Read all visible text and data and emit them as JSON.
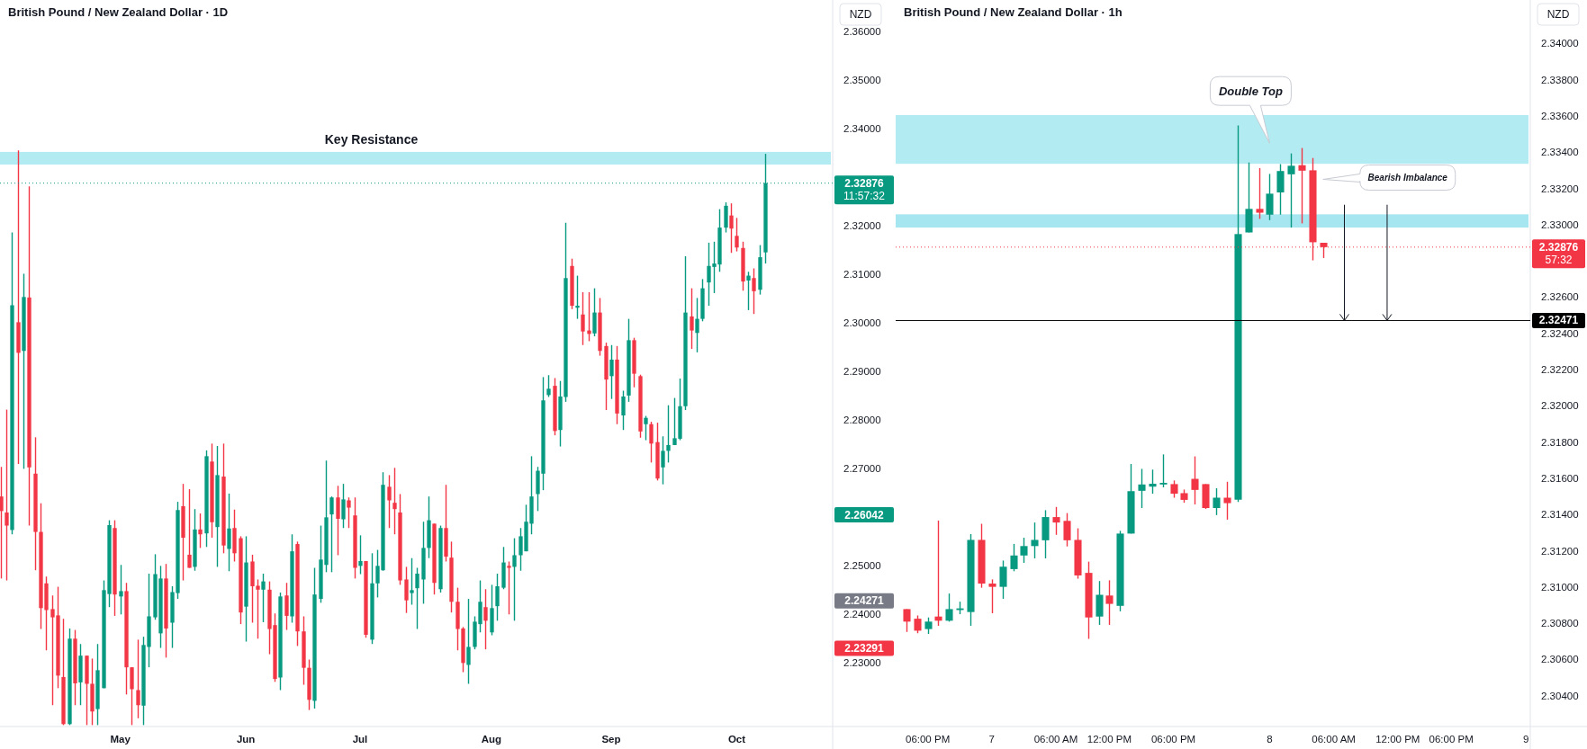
{
  "chart_data": [
    {
      "type": "candlestick",
      "title": "British Pound / New Zealand Dollar · 1D",
      "ylabel": "NZD",
      "categories": [
        null,
        null,
        null,
        null,
        null,
        null,
        null,
        null,
        null,
        null,
        null,
        null,
        null,
        null,
        null,
        null,
        null,
        null,
        null,
        null,
        null,
        "May",
        null,
        null,
        null,
        null,
        null,
        null,
        null,
        null,
        null,
        null,
        null,
        null,
        null,
        null,
        null,
        null,
        null,
        null,
        null,
        null,
        null,
        "Jun",
        null,
        null,
        null,
        null,
        null,
        null,
        null,
        null,
        null,
        null,
        null,
        null,
        null,
        null,
        null,
        null,
        null,
        null,
        null,
        "Jul",
        null,
        null,
        null,
        null,
        null,
        null,
        null,
        null,
        null,
        null,
        null,
        null,
        null,
        null,
        null,
        null,
        null,
        null,
        null,
        null,
        null,
        null,
        "Aug",
        null,
        null,
        null,
        null,
        null,
        null,
        null,
        null,
        null,
        null,
        null,
        null,
        null,
        null,
        null,
        null,
        null,
        null,
        null,
        null,
        "Sep",
        null,
        null,
        null,
        null,
        null,
        null,
        null,
        null,
        null,
        null,
        null,
        null,
        null,
        null,
        null,
        null,
        null,
        null,
        null,
        null,
        null,
        "Oct",
        null,
        null,
        null,
        null,
        null,
        null,
        null,
        null,
        null,
        null,
        null,
        null,
        null,
        null,
        null,
        null
      ],
      "ohlc": [
        [
          2.2642,
          2.2703,
          2.2473,
          2.2612
        ],
        [
          2.2609,
          2.2821,
          2.2469,
          2.2582
        ],
        [
          2.2573,
          2.3186,
          2.2564,
          2.3036
        ],
        [
          2.3001,
          2.3355,
          2.2709,
          2.2938
        ],
        [
          2.2942,
          2.3101,
          2.2699,
          2.3053
        ],
        [
          2.3052,
          2.3281,
          2.2582,
          2.2702
        ],
        [
          2.2689,
          2.2764,
          2.249,
          2.2569
        ],
        [
          2.2569,
          2.2628,
          2.2369,
          2.2412
        ],
        [
          2.2463,
          2.2477,
          2.2325,
          2.2408
        ],
        [
          2.241,
          2.2438,
          2.2212,
          2.2393
        ],
        [
          2.2397,
          2.2456,
          2.2247,
          2.2273
        ],
        [
          2.227,
          2.239,
          2.2171,
          2.2173
        ],
        [
          2.2173,
          2.237,
          2.2171,
          2.2349
        ],
        [
          2.2349,
          2.2367,
          2.2212,
          2.2257
        ],
        [
          2.2259,
          2.2338,
          2.2212,
          2.2314
        ],
        [
          2.2314,
          2.2314,
          2.2171,
          2.2256
        ],
        [
          2.2256,
          2.2308,
          2.2171,
          2.2199
        ],
        [
          2.2204,
          2.2338,
          2.2171,
          2.2284
        ],
        [
          2.2247,
          2.2469,
          2.2247,
          2.2449
        ],
        [
          2.2441,
          2.2593,
          2.2414,
          2.2583
        ],
        [
          2.2577,
          2.2593,
          2.2396,
          2.244
        ],
        [
          2.2436,
          2.2501,
          2.2399,
          2.2447
        ],
        [
          2.2447,
          2.2464,
          2.2234,
          2.229
        ],
        [
          2.229,
          2.229,
          2.2171,
          2.2245
        ],
        [
          2.2243,
          2.2347,
          2.2185,
          2.2212
        ],
        [
          2.2211,
          2.2353,
          2.2171,
          2.2336
        ],
        [
          2.2332,
          2.2483,
          2.229,
          2.2395
        ],
        [
          2.2393,
          2.2523,
          2.2388,
          2.2482
        ],
        [
          2.236,
          2.2499,
          2.233,
          2.2473
        ],
        [
          2.2473,
          2.2503,
          2.231,
          2.237
        ],
        [
          2.2382,
          2.2457,
          2.233,
          2.2445
        ],
        [
          2.2443,
          2.2631,
          2.2431,
          2.2614
        ],
        [
          2.2622,
          2.2668,
          2.2469,
          2.2557
        ],
        [
          2.2522,
          2.2657,
          2.2495,
          2.2495
        ],
        [
          2.2497,
          2.2616,
          2.2489,
          2.2574
        ],
        [
          2.2574,
          2.2607,
          2.2536,
          2.2564
        ],
        [
          2.2566,
          2.2737,
          2.2538,
          2.2725
        ],
        [
          2.2714,
          2.2751,
          2.2557,
          2.2589
        ],
        [
          2.2579,
          2.2746,
          2.2497,
          2.2686
        ],
        [
          2.2683,
          2.2751,
          2.2525,
          2.2541
        ],
        [
          2.2534,
          2.2648,
          2.2488,
          2.2576
        ],
        [
          2.2577,
          2.2615,
          2.2508,
          2.2525
        ],
        [
          2.2556,
          2.256,
          2.2379,
          2.2403
        ],
        [
          2.2415,
          2.256,
          2.2343,
          2.2506
        ],
        [
          2.2508,
          2.2522,
          2.2382,
          2.2457
        ],
        [
          2.2458,
          2.2471,
          2.2349,
          2.245
        ],
        [
          2.245,
          2.2483,
          2.2383,
          2.2467
        ],
        [
          2.245,
          2.2467,
          2.2317,
          2.2369
        ],
        [
          2.2377,
          2.2401,
          2.226,
          2.2266
        ],
        [
          2.2269,
          2.2444,
          2.2243,
          2.2436
        ],
        [
          2.2438,
          2.2464,
          2.2367,
          2.2396
        ],
        [
          2.2395,
          2.2564,
          2.2382,
          2.2529
        ],
        [
          2.2544,
          2.2549,
          2.2334,
          2.2364
        ],
        [
          2.2364,
          2.2395,
          2.2254,
          2.2289
        ],
        [
          2.2289,
          2.2306,
          2.2202,
          2.2223
        ],
        [
          2.2221,
          2.2495,
          2.2205,
          2.244
        ],
        [
          2.2431,
          2.2582,
          2.2423,
          2.2512
        ],
        [
          2.2501,
          2.2716,
          2.2486,
          2.2599
        ],
        [
          2.2605,
          2.2642,
          2.2486,
          2.264
        ],
        [
          2.264,
          2.2664,
          2.2521,
          2.2596
        ],
        [
          2.2595,
          2.2668,
          2.2577,
          2.2636
        ],
        [
          2.2634,
          2.264,
          2.2577,
          2.2619
        ],
        [
          2.2603,
          2.264,
          2.2473,
          2.2495
        ],
        [
          2.2499,
          2.2562,
          2.2482,
          2.2509
        ],
        [
          2.2509,
          2.2509,
          2.2351,
          2.2357
        ],
        [
          2.2347,
          2.2525,
          2.2338,
          2.2463
        ],
        [
          2.2463,
          2.2532,
          2.2434,
          2.2499
        ],
        [
          2.249,
          2.2692,
          2.2489,
          2.2666
        ],
        [
          2.2662,
          2.2686,
          2.2577,
          2.2634
        ],
        [
          2.2629,
          2.2701,
          2.2564,
          2.2616
        ],
        [
          2.2609,
          2.2647,
          2.246,
          2.2469
        ],
        [
          2.2471,
          2.2497,
          2.2402,
          2.2428
        ],
        [
          2.2443,
          2.2515,
          2.2419,
          2.2449
        ],
        [
          2.2453,
          2.2495,
          2.2369,
          2.2483
        ],
        [
          2.2471,
          2.259,
          2.2421,
          2.2536
        ],
        [
          2.2536,
          2.2642,
          2.2515,
          2.2593
        ],
        [
          2.2586,
          2.2586,
          2.244,
          2.2464
        ],
        [
          2.2451,
          2.2582,
          2.2444,
          2.2577
        ],
        [
          2.2577,
          2.2666,
          2.2508,
          2.2518
        ],
        [
          2.2516,
          2.2549,
          2.2403,
          2.2425
        ],
        [
          2.2425,
          2.2454,
          2.2325,
          2.2369
        ],
        [
          2.237,
          2.2373,
          2.228,
          2.2299
        ],
        [
          2.2295,
          2.2431,
          2.2256,
          2.2332
        ],
        [
          2.2332,
          2.2395,
          2.2327,
          2.2384
        ],
        [
          2.2379,
          2.2469,
          2.2362,
          2.2425
        ],
        [
          2.2414,
          2.2451,
          2.2327,
          2.2386
        ],
        [
          2.2362,
          2.246,
          2.2356,
          2.2412
        ],
        [
          2.2416,
          2.2483,
          2.2386,
          2.2457
        ],
        [
          2.2454,
          2.2538,
          2.2451,
          2.2506
        ],
        [
          2.2499,
          2.2508,
          2.2399,
          2.2495
        ],
        [
          2.2497,
          2.2556,
          2.2386,
          2.2521
        ],
        [
          2.2521,
          2.2577,
          2.2489,
          2.256
        ],
        [
          2.2529,
          2.2625,
          2.2529,
          2.259
        ],
        [
          2.2586,
          2.2725,
          2.2564,
          2.2642
        ],
        [
          2.2647,
          2.2703,
          2.2612,
          2.2695
        ],
        [
          2.2689,
          2.2888,
          2.2655,
          2.284
        ],
        [
          2.2851,
          2.2892,
          2.2847,
          2.2864
        ],
        [
          2.287,
          2.2886,
          2.2768,
          2.2777
        ],
        [
          2.2779,
          2.288,
          2.2745,
          2.2848
        ],
        [
          2.2847,
          2.3206,
          2.2837,
          2.3092
        ],
        [
          2.3117,
          2.3132,
          2.3028,
          2.3035
        ],
        [
          2.3031,
          2.3097,
          2.3008,
          2.3035
        ],
        [
          2.3017,
          2.3063,
          2.2954,
          2.2982
        ],
        [
          2.2984,
          2.3063,
          2.2962,
          2.2977
        ],
        [
          2.2978,
          2.3071,
          2.2972,
          2.3021
        ],
        [
          2.3021,
          2.3051,
          2.2932,
          2.2942
        ],
        [
          2.2952,
          2.2959,
          2.282,
          2.2883
        ],
        [
          2.289,
          2.2954,
          2.2843,
          2.2924
        ],
        [
          2.2924,
          2.2952,
          2.2791,
          2.2813
        ],
        [
          2.2809,
          2.286,
          2.2779,
          2.2848
        ],
        [
          2.285,
          2.3008,
          2.2837,
          2.2964
        ],
        [
          2.2964,
          2.2969,
          2.2867,
          2.2895
        ],
        [
          2.289,
          2.2893,
          2.2763,
          2.2776
        ],
        [
          2.2791,
          2.2808,
          2.2758,
          2.2804
        ],
        [
          2.2791,
          2.2796,
          2.2712,
          2.2751
        ],
        [
          2.2754,
          2.2794,
          2.2675,
          2.2679
        ],
        [
          2.2702,
          2.2766,
          2.2667,
          2.2736
        ],
        [
          2.2736,
          2.283,
          2.2712,
          2.2748
        ],
        [
          2.2748,
          2.2845,
          2.2748,
          2.2762
        ],
        [
          2.2761,
          2.2885,
          2.2758,
          2.2828
        ],
        [
          2.2828,
          2.3137,
          2.282,
          2.3021
        ],
        [
          2.3013,
          2.3071,
          2.2946,
          2.2984
        ],
        [
          2.2979,
          2.3051,
          2.2939,
          2.3008
        ],
        [
          2.3008,
          2.309,
          2.3003,
          2.3071
        ],
        [
          2.3083,
          2.3165,
          2.3035,
          2.3117
        ],
        [
          2.3115,
          2.3167,
          2.3061,
          2.3122
        ],
        [
          2.312,
          2.3234,
          2.3105,
          2.3196
        ],
        [
          2.3196,
          2.3248,
          2.3186,
          2.3241
        ],
        [
          2.3221,
          2.3246,
          2.3144,
          2.3194
        ],
        [
          2.3179,
          2.3216,
          2.3147,
          2.3155
        ],
        [
          2.3154,
          2.3167,
          2.3066,
          2.3085
        ],
        [
          2.3087,
          2.3105,
          2.3026,
          2.3097
        ],
        [
          2.3092,
          2.3112,
          2.3018,
          2.3065
        ],
        [
          2.3068,
          2.316,
          2.3058,
          2.3135
        ],
        [
          2.3145,
          2.3348,
          2.3122,
          2.32876
        ],
        null,
        null,
        null,
        null,
        null,
        null,
        null,
        null,
        null,
        null,
        null
      ],
      "ylim": [
        2.2168,
        2.3665
      ],
      "yticks": [
        {
          "value": 2.23,
          "label": "2.23000"
        },
        {
          "value": 2.24,
          "label": "2.24000"
        },
        {
          "value": 2.25,
          "label": "2.25000"
        },
        {
          "value": 2.27,
          "label": "2.27000"
        },
        {
          "value": 2.28,
          "label": "2.28000"
        },
        {
          "value": 2.29,
          "label": "2.29000"
        },
        {
          "value": 2.3,
          "label": "2.30000"
        },
        {
          "value": 2.31,
          "label": "2.31000"
        },
        {
          "value": 2.32,
          "label": "2.32000"
        },
        {
          "value": 2.34,
          "label": "2.34000"
        },
        {
          "value": 2.35,
          "label": "2.35000"
        },
        {
          "value": 2.36,
          "label": "2.36000"
        }
      ],
      "bands": [
        {
          "axis": "y",
          "from": 2.3326,
          "to": 2.3352,
          "label": "Key Resistance",
          "color": "#b2ebf2"
        }
      ],
      "ref_lines": [
        {
          "axis": "y",
          "value": 2.32876,
          "label": "2.32876",
          "color": "#089981",
          "line_style": "dotted"
        }
      ],
      "annotations": [
        "2.26042",
        "2.24271",
        "2.23291",
        "11:57:32"
      ]
    },
    {
      "type": "candlestick",
      "title": "British Pound / New Zealand Dollar · 1h",
      "ylabel": "NZD",
      "categories": [
        null,
        null,
        "06:00 PM",
        null,
        null,
        null,
        null,
        null,
        "7",
        null,
        null,
        null,
        null,
        null,
        "06:00 AM",
        null,
        null,
        null,
        null,
        "12:00 PM",
        null,
        null,
        null,
        null,
        null,
        "06:00 PM",
        null,
        null,
        null,
        null,
        null,
        null,
        null,
        null,
        "8",
        null,
        null,
        null,
        null,
        null,
        "06:00 AM",
        null,
        null,
        null,
        null,
        null,
        "12:00 PM",
        null,
        null,
        null,
        null,
        "06:00 PM",
        null,
        null,
        null,
        null,
        null,
        null,
        "9"
      ],
      "ohlc": [
        [
          2.30878,
          2.30878,
          2.30752,
          2.30809
        ],
        [
          2.30825,
          2.30843,
          2.30745,
          2.30759
        ],
        [
          2.30768,
          2.30832,
          2.30741,
          2.30809
        ],
        [
          2.30837,
          2.31367,
          2.30786,
          2.30814
        ],
        [
          2.30814,
          2.30964,
          2.30809,
          2.30878
        ],
        [
          2.30873,
          2.30919,
          2.3085,
          2.30882
        ],
        [
          2.30862,
          2.31292,
          2.30786,
          2.3126
        ],
        [
          2.3126,
          2.31349,
          2.30996,
          2.31019
        ],
        [
          2.31019,
          2.31042,
          2.30855,
          2.31001
        ],
        [
          2.31001,
          2.31146,
          2.30935,
          2.31112
        ],
        [
          2.31099,
          2.31238,
          2.31087,
          2.31174
        ],
        [
          2.31174,
          2.31272,
          2.31133,
          2.31226
        ],
        [
          2.31226,
          2.31356,
          2.31158,
          2.3126
        ],
        [
          2.31258,
          2.31424,
          2.31158,
          2.31386
        ],
        [
          2.31386,
          2.31442,
          2.31288,
          2.31356
        ],
        [
          2.31365,
          2.31408,
          2.31224,
          2.31258
        ],
        [
          2.3126,
          2.31324,
          2.31046,
          2.31064
        ],
        [
          2.31078,
          2.3114,
          2.30714,
          2.30832
        ],
        [
          2.30837,
          2.31033,
          2.30791,
          2.30957
        ],
        [
          2.30953,
          2.31037,
          2.30791,
          2.30907
        ],
        [
          2.30896,
          2.3131,
          2.30866,
          2.31295
        ],
        [
          2.31295,
          2.31679,
          2.31295,
          2.31529
        ],
        [
          2.31531,
          2.31652,
          2.31436,
          2.31566
        ],
        [
          2.31554,
          2.31648,
          2.31515,
          2.3157
        ],
        [
          2.31566,
          2.31732,
          2.3155,
          2.31575
        ],
        [
          2.31568,
          2.31588,
          2.31493,
          2.31515
        ],
        [
          2.31518,
          2.31538,
          2.31465,
          2.31481
        ],
        [
          2.31597,
          2.31721,
          2.31456,
          2.31536
        ],
        [
          2.31568,
          2.31568,
          2.31431,
          2.31436
        ],
        [
          2.31436,
          2.31545,
          2.31397,
          2.31493
        ],
        [
          2.31493,
          2.31581,
          2.31372,
          2.31463
        ],
        [
          2.31482,
          2.33548,
          2.3147,
          2.32948
        ],
        [
          2.32957,
          2.33343,
          2.32957,
          2.33087
        ],
        [
          2.33087,
          2.33312,
          2.33032,
          2.33066
        ],
        [
          2.33055,
          2.3328,
          2.33025,
          2.33171
        ],
        [
          2.33178,
          2.33334,
          2.33055,
          2.33296
        ],
        [
          2.33278,
          2.33393,
          2.32984,
          2.33325
        ],
        [
          2.33328,
          2.33423,
          2.33007,
          2.33298
        ],
        [
          2.333,
          2.33368,
          2.32803,
          2.32903
        ],
        [
          2.329,
          2.329,
          2.32816,
          2.32876
        ],
        null,
        null,
        null,
        null,
        null,
        null,
        null,
        null,
        null,
        null,
        null,
        null,
        null,
        null,
        null,
        null,
        null,
        null,
        null
      ],
      "ylim": [
        2.3023,
        2.3424
      ],
      "yticks": [
        {
          "value": 2.304,
          "label": "2.30400"
        },
        {
          "value": 2.306,
          "label": "2.30600"
        },
        {
          "value": 2.308,
          "label": "2.30800"
        },
        {
          "value": 2.31,
          "label": "2.31000"
        },
        {
          "value": 2.312,
          "label": "2.31200"
        },
        {
          "value": 2.314,
          "label": "2.31400"
        },
        {
          "value": 2.316,
          "label": "2.31600"
        },
        {
          "value": 2.318,
          "label": "2.31800"
        },
        {
          "value": 2.32,
          "label": "2.32000"
        },
        {
          "value": 2.322,
          "label": "2.32200"
        },
        {
          "value": 2.324,
          "label": "2.32400"
        },
        {
          "value": 2.326,
          "label": "2.32600"
        },
        {
          "value": 2.33,
          "label": "2.33000"
        },
        {
          "value": 2.332,
          "label": "2.33200"
        },
        {
          "value": 2.334,
          "label": "2.33400"
        },
        {
          "value": 2.336,
          "label": "2.33600"
        },
        {
          "value": 2.338,
          "label": "2.33800"
        },
        {
          "value": 2.34,
          "label": "2.34000"
        }
      ],
      "bands": [
        {
          "axis": "y",
          "from": 2.33336,
          "to": 2.33605,
          "color": "#b2ebf2"
        },
        {
          "axis": "y",
          "from": 2.32984,
          "to": 2.33057,
          "color": "#a5e6f0"
        }
      ],
      "ref_lines": [
        {
          "axis": "y",
          "value": 2.32876,
          "label": "2.32876",
          "color": "#f23645",
          "line_style": "dotted"
        },
        {
          "axis": "y",
          "value": 2.32471,
          "label": "2.32471",
          "color": "#000000",
          "line_style": "solid"
        }
      ],
      "annotations": [
        "Double Top",
        "Bearish Imbalance",
        "57:32"
      ]
    }
  ]
}
